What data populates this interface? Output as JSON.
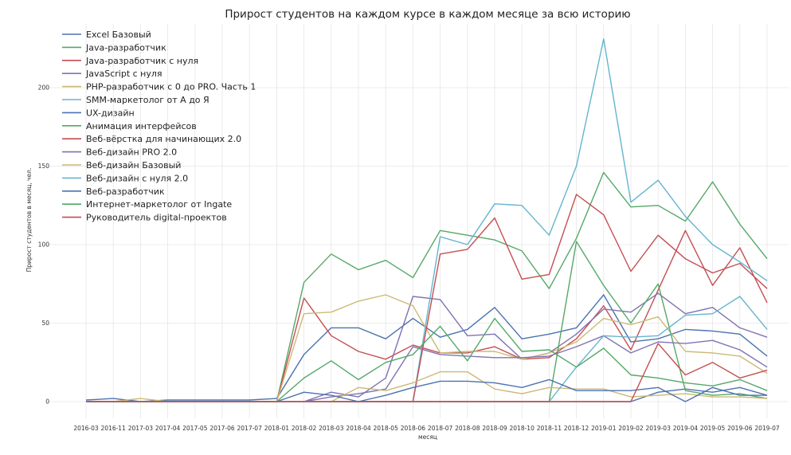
{
  "chart_data": {
    "type": "line",
    "title": "Прирост студентов на каждом курсе в каждом месяце за всю историю",
    "xlabel": "месяц",
    "ylabel": "Прирост студентов в месяц, чел.",
    "ylim": [
      -3,
      240
    ],
    "yticks": [
      "0",
      "50",
      "100",
      "150",
      "200"
    ],
    "grid": true,
    "legend_position": "top-left",
    "categories": [
      "2016-03",
      "2016-11",
      "2017-03",
      "2017-04",
      "2017-05",
      "2017-06",
      "2017-07",
      "2018-01",
      "2018-02",
      "2018-03",
      "2018-04",
      "2018-05",
      "2018-06",
      "2018-07",
      "2018-08",
      "2018-09",
      "2018-10",
      "2018-11",
      "2018-12",
      "2019-01",
      "2019-02",
      "2019-03",
      "2019-04",
      "2019-05",
      "2019-06",
      "2019-07"
    ],
    "series": [
      {
        "name": "Excel Базовый",
        "color": "#4c72b0",
        "values": [
          1,
          2,
          0,
          1,
          1,
          1,
          1,
          2,
          30,
          47,
          47,
          40,
          53,
          41,
          46,
          60,
          40,
          43,
          47,
          68,
          38,
          40,
          46,
          45,
          43,
          29
        ]
      },
      {
        "name": "Java-разработчик",
        "color": "#55a868",
        "values": [
          0,
          0,
          0,
          0,
          0,
          0,
          0,
          0,
          76,
          94,
          84,
          90,
          79,
          109,
          106,
          103,
          96,
          72,
          104,
          146,
          124,
          125,
          115,
          140,
          113,
          91
        ]
      },
      {
        "name": "Java-разработчик с нуля",
        "color": "#c44e52",
        "values": [
          0,
          0,
          0,
          0,
          0,
          0,
          0,
          0,
          66,
          42,
          32,
          27,
          36,
          31,
          31,
          35,
          27,
          28,
          40,
          61,
          33,
          71,
          109,
          74,
          98,
          63
        ]
      },
      {
        "name": "JavaScript с нуля",
        "color": "#8172b2",
        "values": [
          0,
          0,
          0,
          0,
          0,
          0,
          0,
          0,
          0,
          6,
          3,
          15,
          67,
          65,
          42,
          43,
          27,
          31,
          43,
          59,
          57,
          69,
          56,
          60,
          47,
          41
        ]
      },
      {
        "name": "PHP-разработчик с 0 до PRO. Часть 1",
        "color": "#ccb974",
        "values": [
          0,
          0,
          2,
          0,
          0,
          0,
          0,
          0,
          56,
          57,
          64,
          68,
          61,
          31,
          32,
          32,
          27,
          31,
          38,
          53,
          49,
          54,
          32,
          31,
          29,
          18
        ]
      },
      {
        "name": "SMM-маркетолог от А до Я",
        "color": "#64b5cd",
        "values": [
          0,
          0,
          0,
          0,
          0,
          0,
          0,
          0,
          0,
          0,
          0,
          0,
          0,
          105,
          100,
          126,
          125,
          106,
          150,
          231,
          127,
          141,
          118,
          100,
          89,
          77
        ]
      },
      {
        "name": "UX-дизайн",
        "color": "#4c72b0",
        "values": [
          0,
          0,
          0,
          0,
          0,
          0,
          0,
          0,
          0,
          0,
          0,
          0,
          0,
          0,
          0,
          0,
          0,
          0,
          0,
          0,
          0,
          6,
          8,
          6,
          9,
          4
        ]
      },
      {
        "name": "Анимация интерфейсов",
        "color": "#55a868",
        "values": [
          0,
          0,
          0,
          0,
          0,
          0,
          0,
          0,
          0,
          0,
          0,
          0,
          0,
          0,
          0,
          0,
          0,
          0,
          102,
          74,
          50,
          75,
          7,
          4,
          5,
          2
        ]
      },
      {
        "name": "Веб-вёрстка для начинающих 2.0",
        "color": "#c44e52",
        "values": [
          0,
          0,
          0,
          0,
          0,
          0,
          0,
          0,
          0,
          0,
          0,
          0,
          0,
          94,
          97,
          117,
          78,
          81,
          132,
          119,
          83,
          106,
          91,
          82,
          88,
          72
        ]
      },
      {
        "name": "Веб-дизайн PRO 2.0",
        "color": "#8172b2",
        "values": [
          0,
          0,
          0,
          0,
          0,
          0,
          0,
          0,
          0,
          3,
          5,
          8,
          35,
          30,
          29,
          28,
          28,
          29,
          35,
          42,
          31,
          38,
          37,
          39,
          33,
          22
        ]
      },
      {
        "name": "Веб-дизайн Базовый",
        "color": "#ccb974",
        "values": [
          0,
          0,
          0,
          0,
          0,
          0,
          0,
          0,
          0,
          0,
          9,
          7,
          12,
          19,
          19,
          8,
          5,
          9,
          8,
          8,
          3,
          4,
          5,
          3,
          3,
          2
        ]
      },
      {
        "name": "Веб-дизайн с нуля 2.0",
        "color": "#64b5cd",
        "values": [
          0,
          0,
          0,
          0,
          0,
          0,
          0,
          0,
          0,
          0,
          0,
          0,
          0,
          0,
          0,
          0,
          0,
          0,
          22,
          42,
          41,
          42,
          55,
          56,
          67,
          46
        ]
      },
      {
        "name": "Веб-разработчик",
        "color": "#4c72b0",
        "values": [
          0,
          0,
          0,
          0,
          0,
          0,
          0,
          0,
          6,
          4,
          0,
          4,
          9,
          13,
          13,
          12,
          9,
          14,
          7,
          7,
          7,
          9,
          0,
          9,
          4,
          4
        ]
      },
      {
        "name": "Интернет-маркетолог от Ingate",
        "color": "#55a868",
        "values": [
          0,
          0,
          0,
          0,
          0,
          0,
          0,
          0,
          15,
          26,
          14,
          25,
          30,
          48,
          26,
          53,
          32,
          33,
          22,
          34,
          17,
          15,
          12,
          10,
          14,
          7
        ]
      },
      {
        "name": "Руководитель digital-проектов",
        "color": "#c44e52",
        "values": [
          0,
          0,
          0,
          0,
          0,
          0,
          0,
          0,
          0,
          0,
          0,
          0,
          0,
          0,
          0,
          0,
          0,
          0,
          0,
          0,
          0,
          37,
          17,
          25,
          15,
          20
        ]
      }
    ]
  }
}
